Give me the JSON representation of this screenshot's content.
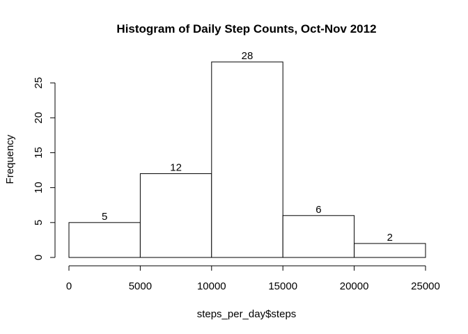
{
  "chart_data": {
    "type": "bar",
    "title": "Histogram of Daily Step Counts, Oct-Nov 2012",
    "xlabel": "steps_per_day$steps",
    "ylabel": "Frequency",
    "bins": [
      {
        "start": 0,
        "end": 5000,
        "value": 5,
        "label": "5"
      },
      {
        "start": 5000,
        "end": 10000,
        "value": 12,
        "label": "12"
      },
      {
        "start": 10000,
        "end": 15000,
        "value": 28,
        "label": "28"
      },
      {
        "start": 15000,
        "end": 20000,
        "value": 6,
        "label": "6"
      },
      {
        "start": 20000,
        "end": 25000,
        "value": 2,
        "label": "2"
      }
    ],
    "xlim": [
      0,
      25000
    ],
    "ylim": [
      0,
      28
    ],
    "xticks": [
      {
        "value": 0,
        "label": "0"
      },
      {
        "value": 5000,
        "label": "5000"
      },
      {
        "value": 10000,
        "label": "10000"
      },
      {
        "value": 15000,
        "label": "15000"
      },
      {
        "value": 20000,
        "label": "20000"
      },
      {
        "value": 25000,
        "label": "25000"
      }
    ],
    "yticks": [
      {
        "value": 0,
        "label": "0"
      },
      {
        "value": 5,
        "label": "5"
      },
      {
        "value": 10,
        "label": "10"
      },
      {
        "value": 15,
        "label": "15"
      },
      {
        "value": 20,
        "label": "20"
      },
      {
        "value": 25,
        "label": "25"
      }
    ],
    "grid": false,
    "bar_fill": "#ffffff",
    "bar_stroke": "#000000"
  }
}
